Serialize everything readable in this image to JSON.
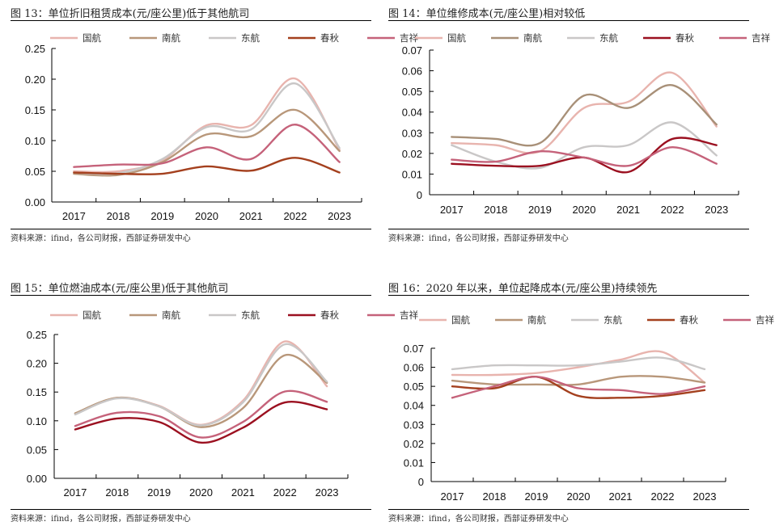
{
  "source_note": "资料来源：ifind，各公司财报，西部证券研发中心",
  "chart_data": [
    {
      "id": "fig13",
      "type": "line",
      "title": "图 13：单位折旧租赁成本(元/座公里)低于其他航司",
      "xlabel": "",
      "ylabel": "",
      "categories": [
        "2017",
        "2018",
        "2019",
        "2020",
        "2021",
        "2022",
        "2023"
      ],
      "ylim": [
        0,
        0.25
      ],
      "yticks": [
        0.0,
        0.05,
        0.1,
        0.15,
        0.2,
        0.25
      ],
      "ytick_labels": [
        "0.00",
        "0.05",
        "0.10",
        "0.15",
        "0.20",
        "0.25"
      ],
      "grid": false,
      "legend_position": "top",
      "series": [
        {
          "name": "国航",
          "color": "#E8B4AE",
          "values": [
            0.05,
            0.05,
            0.068,
            0.125,
            0.125,
            0.201,
            0.085
          ]
        },
        {
          "name": "南航",
          "color": "#B8977A",
          "values": [
            0.046,
            0.044,
            0.065,
            0.11,
            0.107,
            0.15,
            0.083
          ]
        },
        {
          "name": "东航",
          "color": "#C9C7C7",
          "values": [
            0.048,
            0.047,
            0.07,
            0.122,
            0.118,
            0.193,
            0.088
          ]
        },
        {
          "name": "春秋",
          "color": "#A4401E",
          "values": [
            0.048,
            0.046,
            0.046,
            0.058,
            0.051,
            0.072,
            0.048
          ]
        },
        {
          "name": "吉祥",
          "color": "#C5627A",
          "values": [
            0.057,
            0.061,
            0.063,
            0.089,
            0.07,
            0.126,
            0.065
          ]
        }
      ]
    },
    {
      "id": "fig14",
      "type": "line",
      "title": "图 14：单位维修成本(元/座公里)相对较低",
      "xlabel": "",
      "ylabel": "",
      "categories": [
        "2017",
        "2018",
        "2019",
        "2020",
        "2021",
        "2022",
        "2023"
      ],
      "ylim": [
        0,
        0.07
      ],
      "yticks": [
        0,
        0.01,
        0.02,
        0.03,
        0.04,
        0.05,
        0.06,
        0.07
      ],
      "ytick_labels": [
        "0",
        "0.01",
        "0.02",
        "0.03",
        "0.04",
        "0.05",
        "0.06",
        "0.07"
      ],
      "grid": false,
      "legend_position": "top",
      "series": [
        {
          "name": "国航",
          "color": "#E8B4AE",
          "values": [
            0.025,
            0.024,
            0.021,
            0.042,
            0.045,
            0.059,
            0.033
          ]
        },
        {
          "name": "南航",
          "color": "#A89078",
          "values": [
            0.028,
            0.027,
            0.025,
            0.048,
            0.042,
            0.053,
            0.034
          ]
        },
        {
          "name": "东航",
          "color": "#C9C7C7",
          "values": [
            0.024,
            0.016,
            0.013,
            0.023,
            0.024,
            0.035,
            0.019
          ]
        },
        {
          "name": "春秋",
          "color": "#9B1020",
          "values": [
            0.015,
            0.014,
            0.014,
            0.018,
            0.011,
            0.027,
            0.024
          ]
        },
        {
          "name": "吉祥",
          "color": "#C5627A",
          "values": [
            0.017,
            0.016,
            0.021,
            0.018,
            0.014,
            0.023,
            0.015
          ]
        }
      ]
    },
    {
      "id": "fig15",
      "type": "line",
      "title": "图 15：单位燃油成本(元/座公里)低于其他航司",
      "xlabel": "",
      "ylabel": "",
      "categories": [
        "2017",
        "2018",
        "2019",
        "2020",
        "2021",
        "2022",
        "2023"
      ],
      "ylim": [
        0,
        0.25
      ],
      "yticks": [
        0.0,
        0.05,
        0.1,
        0.15,
        0.2,
        0.25
      ],
      "ytick_labels": [
        "0.00",
        "0.05",
        "0.10",
        "0.15",
        "0.20",
        "0.25"
      ],
      "grid": false,
      "legend_position": "top",
      "series": [
        {
          "name": "国航",
          "color": "#E8B4AE",
          "values": [
            0.112,
            0.14,
            0.126,
            0.093,
            0.135,
            0.238,
            0.16
          ]
        },
        {
          "name": "南航",
          "color": "#B8977A",
          "values": [
            0.113,
            0.14,
            0.125,
            0.089,
            0.122,
            0.214,
            0.166
          ]
        },
        {
          "name": "东航",
          "color": "#C9C7C7",
          "values": [
            0.111,
            0.139,
            0.125,
            0.092,
            0.132,
            0.233,
            0.168
          ]
        },
        {
          "name": "春秋",
          "color": "#9B1020",
          "values": [
            0.085,
            0.104,
            0.098,
            0.062,
            0.088,
            0.132,
            0.12
          ]
        },
        {
          "name": "吉祥",
          "color": "#C5627A",
          "values": [
            0.091,
            0.114,
            0.108,
            0.071,
            0.098,
            0.151,
            0.133
          ]
        }
      ]
    },
    {
      "id": "fig16",
      "type": "line",
      "title": "图 16：2020 年以来，单位起降成本(元/座公里)持续领先",
      "xlabel": "",
      "ylabel": "",
      "categories": [
        "2017",
        "2018",
        "2019",
        "2020",
        "2021",
        "2022",
        "2023"
      ],
      "ylim": [
        0,
        0.07
      ],
      "yticks": [
        0,
        0.01,
        0.02,
        0.03,
        0.04,
        0.05,
        0.06,
        0.07
      ],
      "ytick_labels": [
        "0",
        "0.01",
        "0.02",
        "0.03",
        "0.04",
        "0.05",
        "0.06",
        "0.07"
      ],
      "grid": false,
      "legend_position": "top",
      "series": [
        {
          "name": "国航",
          "color": "#E8B4AE",
          "values": [
            0.056,
            0.056,
            0.057,
            0.06,
            0.064,
            0.068,
            0.052
          ]
        },
        {
          "name": "南航",
          "color": "#B8977A",
          "values": [
            0.053,
            0.051,
            0.051,
            0.051,
            0.055,
            0.055,
            0.052
          ]
        },
        {
          "name": "东航",
          "color": "#C9C7C7",
          "values": [
            0.059,
            0.061,
            0.061,
            0.061,
            0.063,
            0.065,
            0.059
          ]
        },
        {
          "name": "春秋",
          "color": "#A4401E",
          "values": [
            0.05,
            0.049,
            0.055,
            0.045,
            0.044,
            0.045,
            0.048
          ]
        },
        {
          "name": "吉祥",
          "color": "#C5627A",
          "values": [
            0.044,
            0.05,
            0.055,
            0.049,
            0.048,
            0.046,
            0.05
          ]
        }
      ]
    }
  ]
}
